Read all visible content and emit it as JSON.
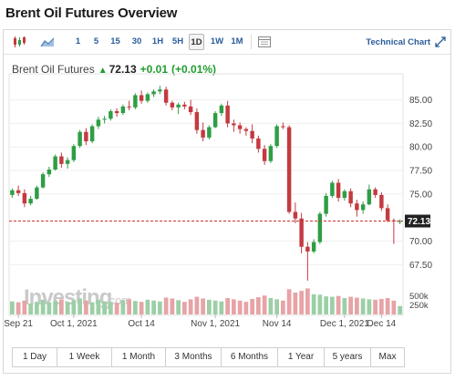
{
  "page": {
    "title": "Brent Oil Futures Overview"
  },
  "toolbar": {
    "icons": [
      "candlestick-icon",
      "area-chart-icon",
      "indicator-panel-icon",
      "expand-icon"
    ],
    "intervals": [
      "1",
      "5",
      "15",
      "30",
      "1H",
      "5H",
      "1D",
      "1W",
      "1M"
    ],
    "active_interval": "1D",
    "technical_chart_label": "Technical Chart"
  },
  "quote": {
    "name": "Brent Oil Futures",
    "price": "72.13",
    "change": "+0.01",
    "change_pct": "(+0.01%)",
    "up_color": "#1f9d2e"
  },
  "watermark": {
    "brand": "Investing",
    "suffix": ".com"
  },
  "ranges": [
    "1 Day",
    "1 Week",
    "1 Month",
    "3 Months",
    "6 Months",
    "1 Year",
    "5 years",
    "Max"
  ],
  "chart_data": {
    "type": "candlestick",
    "x_tick_labels": [
      "Sep 21",
      "Oct 1, 2021",
      "Oct 14",
      "Nov 1, 2021",
      "Nov 14",
      "Dec 1, 2021",
      "Dec 14"
    ],
    "y_tick_labels": [
      "85.00",
      "82.50",
      "80.00",
      "77.50",
      "75.00",
      "70.00",
      "67.50"
    ],
    "ylim": [
      65.5,
      86.8
    ],
    "volume_tick_labels": [
      "500k",
      "250k"
    ],
    "volume_max": 650,
    "last_price_label": "72.13",
    "last_price": 72.13,
    "colors": {
      "up": "#2e9e44",
      "down": "#c33a40",
      "last_line": "#cc3333"
    },
    "ohlc": [
      [
        74.9,
        75.6,
        74.6,
        75.4
      ],
      [
        75.4,
        75.9,
        74.8,
        75.1
      ],
      [
        75.1,
        75.5,
        73.6,
        74.0
      ],
      [
        74.0,
        74.8,
        73.8,
        74.5
      ],
      [
        74.5,
        75.9,
        74.4,
        75.7
      ],
      [
        75.7,
        77.3,
        75.6,
        77.1
      ],
      [
        77.1,
        77.9,
        76.8,
        77.6
      ],
      [
        77.6,
        79.2,
        77.5,
        79.0
      ],
      [
        79.0,
        79.4,
        77.8,
        78.2
      ],
      [
        78.2,
        78.9,
        77.7,
        78.6
      ],
      [
        78.6,
        80.3,
        78.4,
        80.1
      ],
      [
        80.1,
        81.8,
        79.9,
        81.6
      ],
      [
        81.6,
        82.0,
        80.2,
        80.6
      ],
      [
        80.6,
        82.4,
        80.4,
        82.2
      ],
      [
        82.2,
        83.2,
        81.9,
        82.9
      ],
      [
        82.9,
        83.3,
        82.5,
        83.0
      ],
      [
        83.0,
        84.0,
        82.8,
        83.8
      ],
      [
        83.8,
        84.1,
        83.2,
        83.6
      ],
      [
        83.6,
        84.5,
        83.4,
        84.3
      ],
      [
        84.3,
        84.9,
        83.9,
        84.2
      ],
      [
        84.2,
        85.7,
        84.0,
        85.5
      ],
      [
        85.5,
        86.0,
        84.6,
        84.9
      ],
      [
        84.9,
        85.8,
        84.7,
        85.6
      ],
      [
        85.6,
        86.1,
        85.3,
        85.9
      ],
      [
        85.9,
        86.5,
        85.6,
        86.1
      ],
      [
        86.1,
        86.4,
        84.4,
        84.7
      ],
      [
        84.7,
        84.9,
        83.9,
        84.2
      ],
      [
        84.2,
        84.7,
        83.5,
        84.5
      ],
      [
        84.5,
        84.8,
        84.0,
        84.3
      ],
      [
        84.3,
        85.0,
        83.4,
        83.7
      ],
      [
        83.7,
        84.1,
        81.4,
        81.8
      ],
      [
        81.8,
        82.6,
        80.6,
        81.0
      ],
      [
        81.0,
        82.3,
        80.8,
        82.1
      ],
      [
        82.1,
        83.8,
        82.0,
        83.6
      ],
      [
        83.6,
        84.6,
        83.3,
        84.4
      ],
      [
        84.4,
        84.9,
        82.1,
        82.5
      ],
      [
        82.5,
        82.9,
        81.6,
        82.3
      ],
      [
        82.3,
        82.6,
        81.4,
        81.9
      ],
      [
        81.9,
        82.1,
        81.2,
        81.7
      ],
      [
        81.7,
        82.4,
        80.4,
        80.9
      ],
      [
        80.9,
        81.2,
        79.4,
        79.8
      ],
      [
        79.8,
        80.2,
        78.1,
        78.5
      ],
      [
        78.5,
        80.3,
        78.3,
        80.1
      ],
      [
        80.1,
        82.4,
        79.9,
        82.2
      ],
      [
        82.2,
        82.6,
        81.9,
        82.1
      ],
      [
        82.1,
        82.3,
        72.9,
        73.1
      ],
      [
        73.1,
        74.1,
        71.9,
        72.4
      ],
      [
        72.4,
        73.0,
        68.7,
        69.4
      ],
      [
        69.4,
        69.9,
        65.8,
        68.9
      ],
      [
        68.9,
        70.2,
        68.7,
        69.9
      ],
      [
        69.9,
        73.1,
        69.7,
        72.9
      ],
      [
        72.9,
        75.1,
        72.6,
        74.8
      ],
      [
        74.8,
        76.4,
        74.6,
        76.2
      ],
      [
        76.2,
        76.6,
        74.2,
        74.6
      ],
      [
        74.6,
        75.5,
        74.3,
        75.3
      ],
      [
        75.3,
        75.6,
        73.6,
        74.0
      ],
      [
        74.0,
        74.4,
        72.6,
        73.3
      ],
      [
        73.3,
        74.2,
        72.9,
        73.9
      ],
      [
        73.9,
        76.0,
        73.8,
        75.5
      ],
      [
        75.5,
        75.7,
        74.6,
        74.9
      ],
      [
        74.9,
        75.2,
        73.2,
        73.5
      ],
      [
        73.5,
        73.9,
        72.0,
        72.2
      ],
      [
        72.2,
        72.4,
        69.7,
        72.1
      ],
      [
        72.1,
        72.3,
        71.8,
        72.13
      ]
    ],
    "volume": [
      310,
      290,
      330,
      260,
      300,
      350,
      280,
      320,
      360,
      300,
      340,
      380,
      330,
      290,
      350,
      310,
      300,
      280,
      340,
      360,
      320,
      300,
      350,
      330,
      310,
      400,
      380,
      340,
      300,
      360,
      420,
      380,
      350,
      330,
      310,
      390,
      360,
      330,
      300,
      370,
      410,
      450,
      390,
      360,
      330,
      600,
      520,
      560,
      620,
      480,
      470,
      430,
      420,
      440,
      390,
      420,
      400,
      380,
      360,
      350,
      370,
      390,
      330,
      200
    ]
  }
}
